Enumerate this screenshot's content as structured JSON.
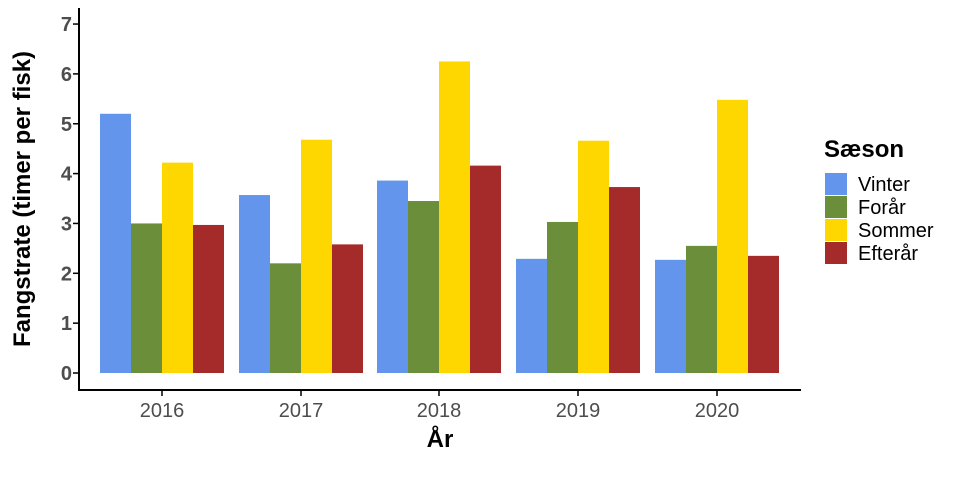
{
  "chart_data": {
    "type": "bar",
    "categories": [
      "2016",
      "2017",
      "2018",
      "2019",
      "2020"
    ],
    "series": [
      {
        "name": "Vinter",
        "color": "#6495ED",
        "values": [
          5.2,
          3.57,
          3.86,
          2.29,
          2.27
        ]
      },
      {
        "name": "Forår",
        "color": "#6B8E3A",
        "values": [
          3.0,
          2.2,
          3.45,
          3.03,
          2.55
        ]
      },
      {
        "name": "Sommer",
        "color": "#FFD700",
        "values": [
          4.22,
          4.68,
          6.25,
          4.66,
          5.48
        ]
      },
      {
        "name": "Efterår",
        "color": "#A52A2A",
        "values": [
          2.97,
          2.58,
          4.16,
          3.73,
          2.35
        ]
      }
    ],
    "yticks": [
      0,
      1,
      2,
      3,
      4,
      5,
      6,
      7
    ],
    "ylim": [
      -0.3,
      7.35
    ],
    "xlabel": "År",
    "ylabel": "Fangstrate (timer per fisk)",
    "legend_title": "Sæson",
    "legend_position": "right",
    "grid": false
  }
}
